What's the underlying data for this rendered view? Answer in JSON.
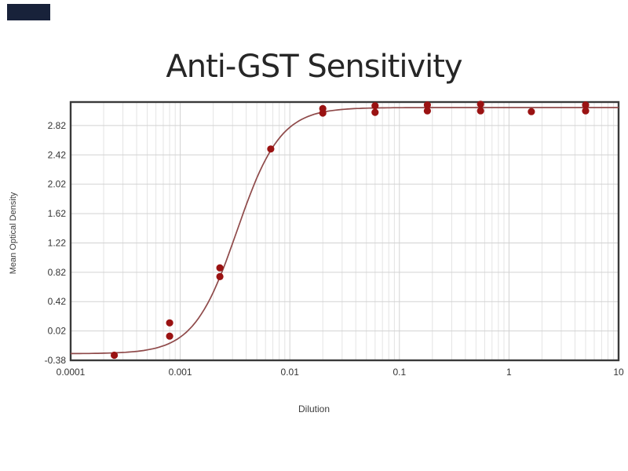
{
  "watermark": {
    "color": "#18223a"
  },
  "chart_data": {
    "type": "scatter",
    "title": "Anti-GST Sensitivity",
    "xlabel": "Dilution",
    "ylabel": "Mean Optical Density",
    "x_scale": "log",
    "xlim": [
      0.0001,
      10
    ],
    "ylim": [
      -0.38,
      3.14
    ],
    "x_ticks": [
      0.0001,
      0.001,
      0.01,
      0.1,
      1,
      10
    ],
    "x_tick_labels": [
      "0.0001",
      "0.001",
      "0.01",
      "0.1",
      "1",
      "10"
    ],
    "y_ticks": [
      -0.38,
      0.02,
      0.42,
      0.82,
      1.22,
      1.62,
      2.02,
      2.42,
      2.82
    ],
    "y_tick_labels": [
      "-0.38",
      "0.02",
      "0.42",
      "0.82",
      "1.22",
      "1.62",
      "2.02",
      "2.42",
      "2.82"
    ],
    "grid": "horizontal majors + vertical log minors, light gray",
    "legend": null,
    "points": [
      {
        "x": 0.00025,
        "y": -0.31
      },
      {
        "x": 0.0008,
        "y": 0.13
      },
      {
        "x": 0.0008,
        "y": -0.05
      },
      {
        "x": 0.0023,
        "y": 0.88
      },
      {
        "x": 0.0023,
        "y": 0.76
      },
      {
        "x": 0.0067,
        "y": 2.5
      },
      {
        "x": 0.02,
        "y": 3.05
      },
      {
        "x": 0.02,
        "y": 2.99
      },
      {
        "x": 0.06,
        "y": 3.09
      },
      {
        "x": 0.06,
        "y": 3.0
      },
      {
        "x": 0.18,
        "y": 3.1
      },
      {
        "x": 0.18,
        "y": 3.02
      },
      {
        "x": 0.55,
        "y": 3.11
      },
      {
        "x": 0.55,
        "y": 3.02
      },
      {
        "x": 1.6,
        "y": 3.01
      },
      {
        "x": 5,
        "y": 3.1
      },
      {
        "x": 5,
        "y": 3.02
      }
    ],
    "fit_curve": {
      "model": "4PL",
      "a": -0.29,
      "b": 2.2,
      "c": 0.0033,
      "d": 3.065
    },
    "colors": {
      "point": "#9a1212",
      "curve": "#8f4a4a",
      "grid_minor": "#e4e4e4",
      "grid_major": "#d2d2d2",
      "axis": "#3a3a3a",
      "tick_text": "#333333",
      "title": "#262626",
      "axis_label_text": "#3c3c3c"
    }
  }
}
